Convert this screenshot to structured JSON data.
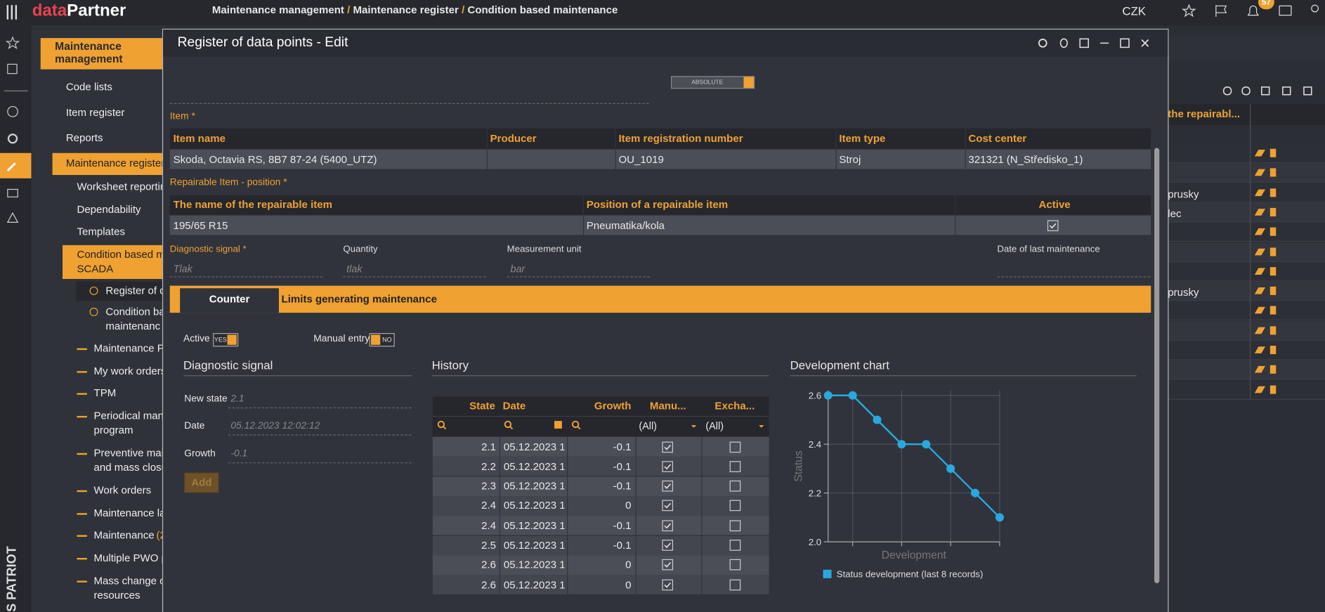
{
  "topbar": {
    "logo_prefix": "data",
    "logo_name": "Partner",
    "breadcrumb": [
      "Maintenance management",
      "Maintenance register",
      "Condition based maintenance"
    ],
    "breadcrumb_separator": "/",
    "currency": "CZK",
    "notifications": 57
  },
  "sidebar": {
    "brand": "ES PATRIOT",
    "section": "Maintenance management",
    "items": [
      {
        "lines": [
          "Code lists"
        ]
      },
      {
        "lines": [
          "Item register"
        ]
      },
      {
        "lines": [
          "Reports"
        ]
      },
      {
        "lines": [
          "Maintenance register"
        ]
      },
      {
        "lines": [
          "Worksheet reportin"
        ]
      },
      {
        "lines": [
          "Dependability"
        ]
      },
      {
        "lines": [
          "Templates"
        ]
      },
      {
        "lines": [
          "Condition based m",
          "SCADA"
        ]
      },
      {
        "lines": [
          "Register of d"
        ]
      },
      {
        "lines": [
          "Condition ba",
          "maintenanc"
        ]
      },
      {
        "lines": [
          "Maintenance Pl"
        ]
      },
      {
        "lines": [
          "My work orders"
        ]
      },
      {
        "lines": [
          "TPM"
        ]
      },
      {
        "lines": [
          "Periodical mant",
          "program"
        ]
      },
      {
        "lines": [
          "Preventive mai",
          "and mass closu"
        ]
      },
      {
        "lines": [
          "Work orders"
        ]
      },
      {
        "lines": [
          "Maintenance la"
        ]
      },
      {
        "lines": [
          "Maintenance"
        ],
        "badge": "(2"
      },
      {
        "lines": [
          "Multiple PWO p"
        ]
      },
      {
        "lines": [
          "Mass change of",
          "resources"
        ]
      }
    ]
  },
  "background_table": {
    "header": "the repairabl...",
    "cells": [
      "prusky",
      "lec",
      "prusky"
    ]
  },
  "dialog": {
    "title": "Register of data points - Edit",
    "mode_toggle": "ABSOLUTE",
    "item": {
      "label": "Item *",
      "headers": [
        "Item name",
        "Producer",
        "Item registration number",
        "Item type",
        "Cost center"
      ],
      "row": {
        "item_name": "Skoda, Octavia RS, 8B7 87-24 (5400_UTZ)",
        "registration_number": "OU_1019",
        "item_type": "Stroj",
        "cost_center": "321321 (N_Středisko_1)"
      }
    },
    "repairable": {
      "label": "Repairable Item - position *",
      "headers": [
        "The name of the repairable item",
        "Position of a repairable item",
        "Active"
      ],
      "row": {
        "name": "195/65 R15",
        "position": "Pneumatika/kola",
        "active": true
      }
    },
    "fields": [
      {
        "label": "Diagnostic signal *",
        "placeholder": "Tlak"
      },
      {
        "label": "Quantity",
        "placeholder": "tlak"
      },
      {
        "label": "Measurement unit",
        "placeholder": "bar"
      },
      {
        "label": "Date of last maintenance"
      }
    ],
    "tabs": [
      "Counter",
      "Limits generating maintenance"
    ],
    "active_toggle": {
      "label": "Active",
      "state": "YES"
    },
    "manual_toggle": {
      "label": "Manual entry",
      "state": "NO"
    },
    "signal": {
      "title": "Diagnostic signal",
      "fields": [
        {
          "label": "New state",
          "value": "2.1"
        },
        {
          "label": "Date",
          "value": "05.12.2023 12:02:12"
        },
        {
          "label": "Growth",
          "value": "-0.1"
        }
      ],
      "button": "Add"
    },
    "history": {
      "title": "History",
      "headers": [
        "State",
        "Date",
        "Growth",
        "Manu...",
        "Excha..."
      ],
      "filters": [
        "(All)",
        "(All)"
      ],
      "rows": [
        {
          "state": 2.1,
          "date": "05.12.2023 1...",
          "growth": -0.1,
          "manual": true,
          "exchange": false
        },
        {
          "state": 2.2,
          "date": "05.12.2023 1...",
          "growth": -0.1,
          "manual": true,
          "exchange": false
        },
        {
          "state": 2.3,
          "date": "05.12.2023 1...",
          "growth": -0.1,
          "manual": true,
          "exchange": false
        },
        {
          "state": 2.4,
          "date": "05.12.2023 1...",
          "growth": 0,
          "manual": true,
          "exchange": false
        },
        {
          "state": 2.4,
          "date": "05.12.2023 1...",
          "growth": -0.1,
          "manual": true,
          "exchange": false
        },
        {
          "state": 2.5,
          "date": "05.12.2023 1...",
          "growth": -0.1,
          "manual": true,
          "exchange": false
        },
        {
          "state": 2.6,
          "date": "05.12.2023 1...",
          "growth": 0,
          "manual": true,
          "exchange": false
        },
        {
          "state": 2.6,
          "date": "05.12.2023 1...",
          "growth": 0,
          "manual": true,
          "exchange": false
        }
      ]
    }
  },
  "chart_data": {
    "type": "line",
    "title": "Development chart",
    "x_label": "Development",
    "y_label": "Status",
    "categories": [
      null,
      null,
      null,
      null,
      null,
      null,
      null,
      null
    ],
    "series": [
      {
        "name": "Status development (last 8 records)",
        "color": "#29a8e0",
        "values": [
          2.6,
          2.6,
          2.5,
          2.4,
          2.4,
          2.3,
          2.2,
          2.1
        ]
      }
    ],
    "ylim": [
      2.0,
      2.62
    ],
    "yticks": [
      {
        "value": 2,
        "label": "2.0"
      },
      2.2,
      2.4,
      2.6
    ],
    "grid": true
  }
}
